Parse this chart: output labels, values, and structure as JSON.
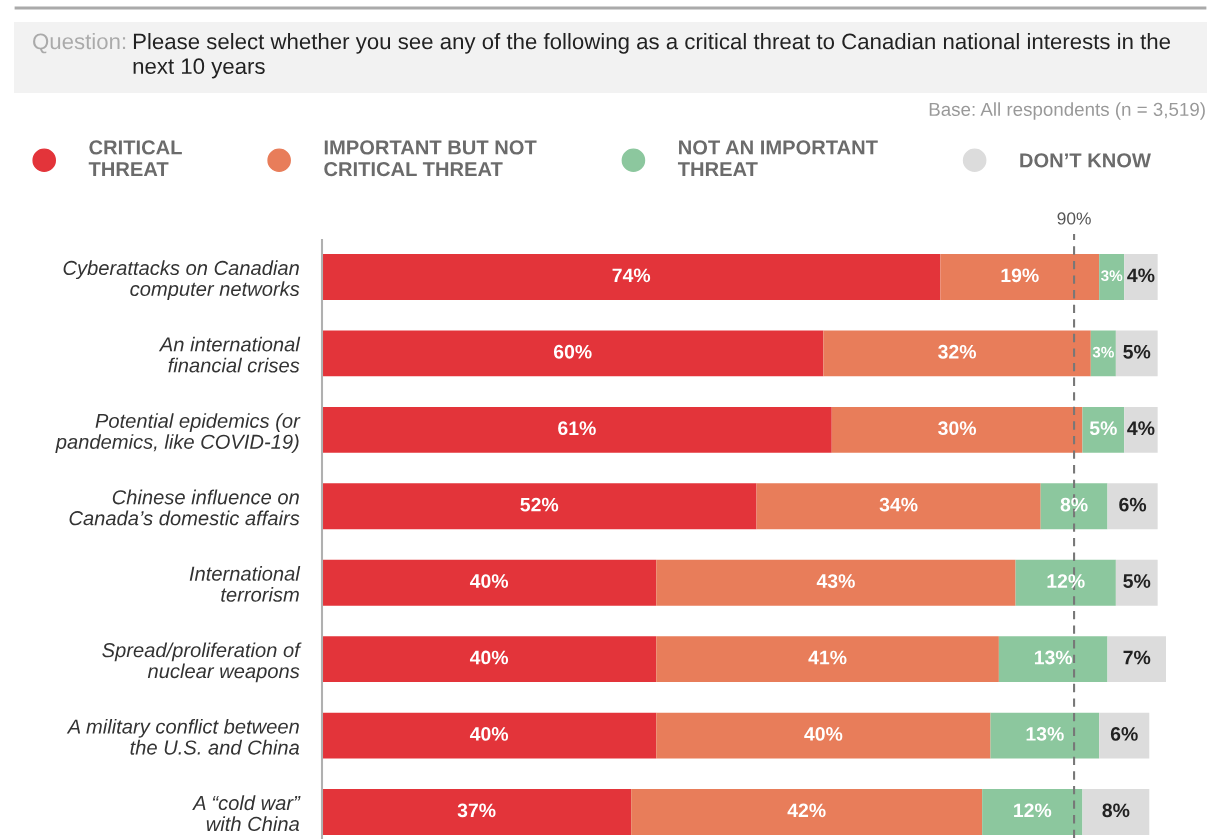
{
  "chart_data": {
    "type": "bar",
    "orientation": "horizontal",
    "stacked": true,
    "title": "Question:",
    "subtitle": "Please select whether you see any of the following as a critical threat to Canadian national interests in the next 10 years",
    "annotations": [
      "Base: All respondents (n = 3,519)"
    ],
    "categories": [
      "Cyberattacks on Canadian\ncomputer networks",
      "An international\nfinancial crises",
      "Potential epidemics (or\npandemics, like COVID-19)",
      "Chinese influence on\nCanada’s domestic affairs",
      "International\nterrorism",
      "Spread/proliferation of\nnuclear weapons",
      "A military conflict between\nthe U.S. and China",
      "A “cold war”\nwith China"
    ],
    "series": [
      {
        "name": "CRITICAL\nTHREAT",
        "color": "#e3343a",
        "values": [
          74,
          60,
          61,
          52,
          40,
          40,
          40,
          37
        ],
        "value_labels": [
          "74%",
          "60%",
          "61%",
          "52%",
          "40%",
          "40%",
          "40%",
          "37%"
        ]
      },
      {
        "name": "IMPORTANT BUT NOT\nCRITICAL THREAT",
        "color": "#e87d5a",
        "values": [
          19,
          32,
          30,
          34,
          43,
          41,
          40,
          42
        ],
        "value_labels": [
          "19%",
          "32%",
          "30%",
          "34%",
          "43%",
          "41%",
          "40%",
          "42%"
        ]
      },
      {
        "name": "NOT AN IMPORTANT\nTHREAT",
        "color": "#8cc79e",
        "values": [
          3,
          3,
          5,
          8,
          12,
          13,
          13,
          12
        ],
        "value_labels": [
          "3%",
          "3%",
          "5%",
          "8%",
          "12%",
          "13%",
          "13%",
          "12%"
        ]
      },
      {
        "name": "DON’T KNOW",
        "color": "#dcdcdc",
        "values": [
          4,
          5,
          4,
          6,
          5,
          7,
          6,
          8
        ],
        "value_labels": [
          "4%",
          "5%",
          "4%",
          "6%",
          "5%",
          "7%",
          "6%",
          "8%"
        ]
      }
    ],
    "xlim": [
      0,
      101
    ],
    "ref_lines": [
      {
        "axis": "x",
        "value": 90,
        "label": "90%",
        "color": "#777777",
        "line_style": "dashed"
      }
    ],
    "legend": "top",
    "tick_labels": "y"
  }
}
